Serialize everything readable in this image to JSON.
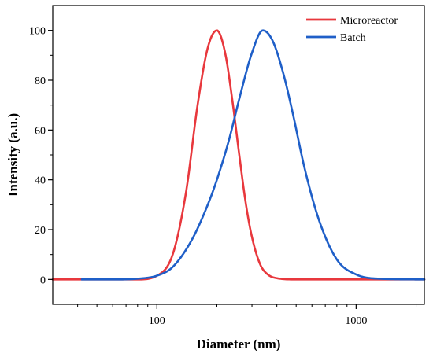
{
  "chart_data": {
    "type": "line",
    "xlabel": "Diameter (nm)",
    "ylabel": "Intensity (a.u.)",
    "x_scale": "log",
    "xlim": [
      30,
      2200
    ],
    "ylim": [
      -10,
      110
    ],
    "x_ticks": [
      {
        "value": 100,
        "label": "100"
      },
      {
        "value": 1000,
        "label": "1000"
      }
    ],
    "y_ticks": [
      {
        "value": 0,
        "label": "0"
      },
      {
        "value": 20,
        "label": "20"
      },
      {
        "value": 40,
        "label": "40"
      },
      {
        "value": 60,
        "label": "60"
      },
      {
        "value": 80,
        "label": "80"
      },
      {
        "value": 100,
        "label": "100"
      }
    ],
    "grid": false,
    "legend_position": "top-right",
    "series": [
      {
        "name": "Microreactor",
        "color": "#e8383d",
        "x": [
          30,
          80,
          100,
          120,
          140,
          160,
          180,
          200,
          220,
          240,
          260,
          280,
          300,
          330,
          360,
          400,
          500,
          1000,
          2200
        ],
        "y": [
          0,
          0,
          1.5,
          10,
          35,
          70,
          93,
          100,
          91,
          71,
          49,
          30,
          17,
          6,
          2,
          0.5,
          0,
          0,
          0
        ]
      },
      {
        "name": "Batch",
        "color": "#1f5fc8",
        "x": [
          42,
          60,
          80,
          100,
          120,
          150,
          180,
          200,
          230,
          260,
          300,
          340,
          380,
          430,
          480,
          550,
          650,
          800,
          1000,
          1300,
          2200
        ],
        "y": [
          0,
          0,
          0.3,
          1.5,
          5,
          16,
          30,
          40,
          56,
          73,
          91,
          100,
          96,
          83,
          67,
          45,
          24,
          8,
          2,
          0.3,
          0
        ]
      }
    ]
  }
}
